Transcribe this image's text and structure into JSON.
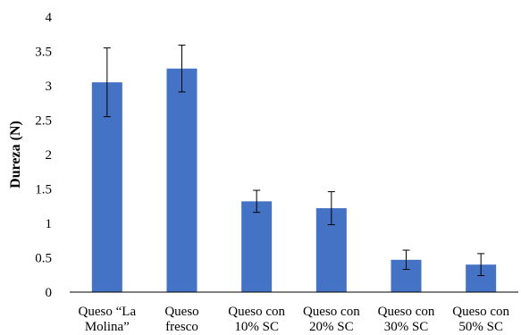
{
  "chart_data": {
    "type": "bar",
    "ylabel": "Dureza (N)",
    "xlabel": "",
    "ylim": [
      0,
      4
    ],
    "yticks": [
      0,
      0.5,
      1,
      1.5,
      2,
      2.5,
      3,
      3.5,
      4
    ],
    "ytick_labels": [
      "0",
      "0.5",
      "1",
      "1.5",
      "2",
      "2.5",
      "3",
      "3.5",
      "4"
    ],
    "grid": false,
    "categories": [
      [
        "Queso “La",
        "Molina”"
      ],
      [
        "Queso",
        "fresco"
      ],
      [
        "Queso con",
        "10% SC"
      ],
      [
        "Queso con",
        "20% SC"
      ],
      [
        "Queso con",
        "30% SC"
      ],
      [
        "Queso con",
        "50% SC"
      ]
    ],
    "values": [
      3.05,
      3.25,
      1.32,
      1.22,
      0.47,
      0.4
    ],
    "error": [
      0.5,
      0.34,
      0.16,
      0.24,
      0.14,
      0.16
    ],
    "bar_color": "#4472C4"
  }
}
